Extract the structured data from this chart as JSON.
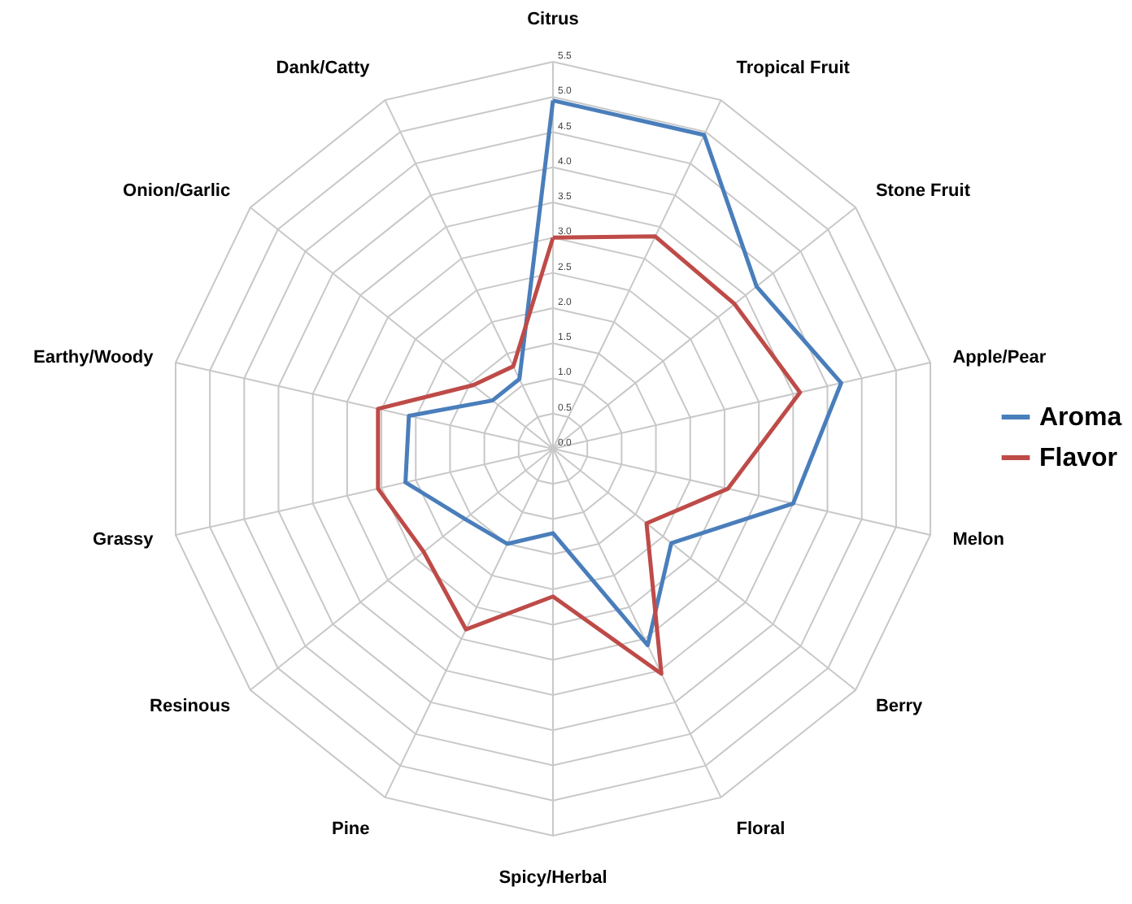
{
  "chart_data": {
    "type": "radar",
    "categories": [
      "Citrus",
      "Tropical Fruit",
      "Stone Fruit",
      "Apple/Pear",
      "Melon",
      "Berry",
      "Floral",
      "Spicy/Herbal",
      "Pine",
      "Resinous",
      "Grassy",
      "Earthy/Woody",
      "Onion/Garlic",
      "Dank/Catty"
    ],
    "series": [
      {
        "name": "Aroma",
        "color": "#4a7ebb",
        "values": [
          4.95,
          4.95,
          3.7,
          4.2,
          3.5,
          2.15,
          3.1,
          1.2,
          1.5,
          1.6,
          2.15,
          2.1,
          1.1,
          1.1
        ]
      },
      {
        "name": "Flavor",
        "color": "#be4b48",
        "values": [
          3.0,
          3.35,
          3.3,
          3.6,
          2.55,
          1.7,
          3.55,
          2.1,
          2.85,
          2.35,
          2.55,
          2.55,
          1.45,
          1.3
        ]
      }
    ],
    "ylim": [
      0,
      5.5
    ],
    "yticks": [
      {
        "value": 0,
        "label": "0.0"
      },
      0.5,
      {
        "value": 1,
        "label": "1.0"
      },
      1.5,
      {
        "value": 2,
        "label": "2.0"
      },
      2.5,
      {
        "value": 3,
        "label": "3.0"
      },
      3.5,
      {
        "value": 4,
        "label": "4.0"
      },
      4.5,
      {
        "value": 5,
        "label": "5.0"
      },
      5.5
    ],
    "grid": true,
    "legend": "right"
  }
}
